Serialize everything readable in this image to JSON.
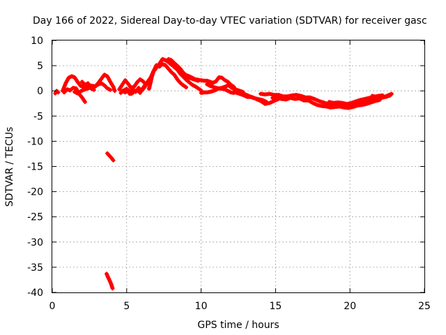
{
  "chart_data": {
    "type": "scatter",
    "title": "Day 166 of 2022, Sidereal Day-to-day VTEC variation (SDTVAR) for receiver gasc",
    "xlabel": "GPS time / hours",
    "ylabel": "SDTVAR / TECUs",
    "xlim": [
      0,
      25
    ],
    "ylim": [
      -40,
      10
    ],
    "xticks": [
      0,
      5,
      10,
      15,
      20,
      25
    ],
    "yticks": [
      10,
      5,
      0,
      -5,
      -10,
      -15,
      -20,
      -25,
      -30,
      -35,
      -40
    ],
    "grid": true,
    "marker": "plus",
    "series": [
      {
        "name": "SDTVAR",
        "color": "#ff0000",
        "tracks": [
          [
            [
              0.2,
              -0.5
            ],
            [
              0.3,
              0.0
            ],
            [
              0.4,
              -0.3
            ]
          ],
          [
            [
              0.7,
              0.0
            ],
            [
              0.9,
              1.5
            ],
            [
              1.1,
              2.6
            ],
            [
              1.3,
              2.9
            ],
            [
              1.5,
              2.7
            ],
            [
              1.7,
              1.8
            ],
            [
              1.9,
              1.0
            ],
            [
              2.1,
              0.8
            ],
            [
              2.3,
              0.6
            ],
            [
              2.5,
              1.1
            ],
            [
              2.7,
              1.0
            ],
            [
              2.9,
              0.9
            ],
            [
              3.1,
              1.6
            ],
            [
              3.3,
              2.4
            ],
            [
              3.5,
              3.2
            ],
            [
              3.7,
              2.9
            ],
            [
              3.9,
              1.8
            ],
            [
              4.1,
              0.8
            ],
            [
              4.2,
              0.0
            ]
          ],
          [
            [
              0.8,
              -0.3
            ],
            [
              1.0,
              0.3
            ],
            [
              1.2,
              0.1
            ],
            [
              1.4,
              0.6
            ],
            [
              1.6,
              0.5
            ],
            [
              1.8,
              -0.6
            ],
            [
              2.0,
              -1.3
            ],
            [
              2.2,
              -2.2
            ]
          ],
          [
            [
              1.5,
              -0.2
            ],
            [
              1.7,
              -0.5
            ],
            [
              1.9,
              -0.1
            ],
            [
              2.1,
              0.2
            ],
            [
              2.3,
              0.4
            ],
            [
              2.5,
              0.6
            ],
            [
              2.7,
              0.5
            ],
            [
              2.9,
              0.9
            ],
            [
              3.1,
              1.3
            ],
            [
              3.3,
              1.5
            ],
            [
              3.5,
              1.1
            ],
            [
              3.7,
              0.5
            ],
            [
              3.9,
              0.2
            ]
          ],
          [
            [
              2.0,
              1.8
            ],
            [
              2.2,
              1.2
            ],
            [
              2.4,
              1.5
            ],
            [
              2.6,
              0.5
            ],
            [
              2.8,
              0.2
            ]
          ],
          [
            [
              3.7,
              -12.4
            ],
            [
              3.85,
              -12.9
            ],
            [
              4.0,
              -13.4
            ],
            [
              4.1,
              -13.8
            ]
          ],
          [
            [
              3.65,
              -36.3
            ],
            [
              3.75,
              -37.0
            ],
            [
              3.85,
              -37.6
            ],
            [
              3.95,
              -38.3
            ],
            [
              4.05,
              -39.2
            ]
          ],
          [
            [
              4.5,
              0.3
            ],
            [
              4.7,
              1.2
            ],
            [
              4.9,
              2.1
            ],
            [
              5.1,
              1.4
            ],
            [
              5.3,
              0.6
            ],
            [
              5.5,
              0.8
            ],
            [
              5.7,
              1.7
            ],
            [
              5.9,
              2.3
            ],
            [
              6.1,
              1.9
            ],
            [
              6.3,
              1.2
            ]
          ],
          [
            [
              4.6,
              -0.4
            ],
            [
              4.8,
              0.1
            ],
            [
              5.0,
              0.4
            ],
            [
              5.2,
              -0.6
            ],
            [
              5.4,
              0.3
            ],
            [
              5.6,
              -0.2
            ],
            [
              5.8,
              0.6
            ],
            [
              6.0,
              0.0
            ],
            [
              6.2,
              0.7
            ],
            [
              6.4,
              1.8
            ],
            [
              6.6,
              2.6
            ],
            [
              6.8,
              3.9
            ],
            [
              7.0,
              5.1
            ]
          ],
          [
            [
              4.7,
              0.0
            ],
            [
              4.9,
              -0.3
            ],
            [
              5.1,
              0.2
            ],
            [
              5.3,
              -0.6
            ],
            [
              5.5,
              -0.2
            ],
            [
              5.7,
              0.2
            ],
            [
              5.9,
              -0.4
            ],
            [
              6.1,
              0.6
            ],
            [
              6.3,
              1.4
            ]
          ],
          [
            [
              6.5,
              0.4
            ],
            [
              6.6,
              1.6
            ],
            [
              6.7,
              2.9
            ],
            [
              6.8,
              3.8
            ],
            [
              6.9,
              4.2
            ],
            [
              7.0,
              4.6
            ]
          ],
          [
            [
              7.2,
              5.4
            ],
            [
              7.4,
              6.3
            ],
            [
              7.6,
              6.1
            ],
            [
              7.8,
              5.7
            ],
            [
              8.0,
              5.2
            ],
            [
              8.2,
              4.9
            ],
            [
              8.4,
              4.5
            ],
            [
              8.6,
              3.9
            ],
            [
              8.8,
              3.6
            ],
            [
              9.0,
              3.1
            ],
            [
              9.2,
              2.9
            ],
            [
              9.4,
              2.6
            ],
            [
              9.6,
              2.3
            ],
            [
              9.8,
              2.2
            ],
            [
              10.0,
              2.1
            ],
            [
              10.2,
              2.0
            ],
            [
              10.4,
              2.0
            ],
            [
              10.6,
              1.8
            ],
            [
              10.8,
              1.6
            ],
            [
              11.0,
              1.9
            ],
            [
              11.2,
              2.7
            ],
            [
              11.4,
              2.6
            ],
            [
              11.6,
              2.1
            ],
            [
              11.8,
              1.8
            ],
            [
              12.0,
              1.2
            ],
            [
              12.2,
              0.8
            ]
          ],
          [
            [
              7.2,
              4.8
            ],
            [
              7.4,
              5.3
            ],
            [
              7.6,
              5.1
            ],
            [
              7.8,
              4.4
            ],
            [
              8.0,
              3.7
            ],
            [
              8.2,
              3.2
            ],
            [
              8.4,
              2.3
            ],
            [
              8.6,
              1.6
            ],
            [
              8.8,
              1.1
            ],
            [
              9.0,
              0.7
            ]
          ],
          [
            [
              7.8,
              6.3
            ],
            [
              8.0,
              6.1
            ],
            [
              8.2,
              5.5
            ],
            [
              8.4,
              5.0
            ],
            [
              8.6,
              4.4
            ],
            [
              8.8,
              3.6
            ],
            [
              9.0,
              3.0
            ],
            [
              9.2,
              2.6
            ],
            [
              9.4,
              2.4
            ],
            [
              9.6,
              2.2
            ],
            [
              9.8,
              2.0
            ]
          ],
          [
            [
              8.0,
              5.3
            ],
            [
              8.2,
              4.7
            ],
            [
              8.4,
              4.2
            ],
            [
              8.6,
              3.4
            ],
            [
              8.8,
              2.8
            ],
            [
              9.0,
              2.2
            ],
            [
              9.2,
              1.7
            ],
            [
              9.4,
              1.2
            ],
            [
              9.6,
              0.9
            ],
            [
              9.8,
              0.5
            ],
            [
              10.0,
              0.1
            ]
          ],
          [
            [
              10.0,
              -0.4
            ],
            [
              10.2,
              -0.3
            ],
            [
              10.4,
              -0.3
            ],
            [
              10.6,
              -0.2
            ],
            [
              10.8,
              0.0
            ],
            [
              11.0,
              0.2
            ],
            [
              11.2,
              0.5
            ],
            [
              11.4,
              0.4
            ],
            [
              11.6,
              0.3
            ],
            [
              11.8,
              0.0
            ],
            [
              12.0,
              -0.3
            ],
            [
              12.2,
              -0.4
            ]
          ],
          [
            [
              10.4,
              1.3
            ],
            [
              10.6,
              1.0
            ],
            [
              10.8,
              0.8
            ],
            [
              11.0,
              0.6
            ],
            [
              11.2,
              0.5
            ],
            [
              11.4,
              0.6
            ],
            [
              11.6,
              0.8
            ],
            [
              11.8,
              1.1
            ],
            [
              12.0,
              0.8
            ],
            [
              12.2,
              0.5
            ],
            [
              12.4,
              0.2
            ],
            [
              12.6,
              0.0
            ],
            [
              12.8,
              -0.2
            ]
          ],
          [
            [
              12.0,
              0.7
            ],
            [
              12.3,
              0.3
            ],
            [
              12.6,
              -0.2
            ],
            [
              12.9,
              -0.6
            ],
            [
              13.2,
              -1.0
            ],
            [
              13.5,
              -1.4
            ],
            [
              13.8,
              -1.6
            ],
            [
              14.1,
              -1.8
            ],
            [
              14.4,
              -2.2
            ]
          ],
          [
            [
              12.2,
              -0.2
            ],
            [
              12.5,
              -0.5
            ],
            [
              12.8,
              -0.8
            ],
            [
              13.1,
              -1.2
            ],
            [
              13.4,
              -1.2
            ],
            [
              13.7,
              -1.6
            ],
            [
              14.0,
              -2.0
            ],
            [
              14.3,
              -2.6
            ],
            [
              14.6,
              -2.4
            ],
            [
              14.9,
              -2.0
            ],
            [
              15.2,
              -1.6
            ]
          ],
          [
            [
              14.0,
              -0.6
            ],
            [
              14.3,
              -0.7
            ],
            [
              14.6,
              -0.6
            ],
            [
              14.9,
              -0.8
            ],
            [
              15.2,
              -0.8
            ],
            [
              15.5,
              -1.1
            ],
            [
              15.8,
              -1.1
            ],
            [
              16.1,
              -0.9
            ],
            [
              16.4,
              -0.8
            ],
            [
              16.7,
              -1.0
            ],
            [
              17.0,
              -1.3
            ],
            [
              17.3,
              -1.3
            ],
            [
              17.6,
              -1.6
            ],
            [
              17.9,
              -2.0
            ],
            [
              18.2,
              -2.3
            ],
            [
              18.5,
              -2.6
            ],
            [
              18.8,
              -2.8
            ],
            [
              19.1,
              -2.8
            ],
            [
              19.4,
              -2.8
            ],
            [
              19.7,
              -3.0
            ],
            [
              20.0,
              -2.8
            ],
            [
              20.3,
              -2.5
            ],
            [
              20.6,
              -2.2
            ],
            [
              20.9,
              -2.1
            ],
            [
              21.2,
              -1.9
            ],
            [
              21.5,
              -1.7
            ],
            [
              21.8,
              -1.5
            ],
            [
              22.1,
              -1.3
            ],
            [
              22.4,
              -1.1
            ],
            [
              22.7,
              -0.7
            ]
          ],
          [
            [
              14.8,
              -1.4
            ],
            [
              15.1,
              -1.3
            ],
            [
              15.4,
              -1.6
            ],
            [
              15.7,
              -1.7
            ],
            [
              16.0,
              -1.4
            ],
            [
              16.3,
              -1.6
            ],
            [
              16.6,
              -1.5
            ],
            [
              16.9,
              -1.9
            ],
            [
              17.2,
              -1.9
            ],
            [
              17.5,
              -2.4
            ],
            [
              17.8,
              -2.8
            ],
            [
              18.1,
              -3.0
            ],
            [
              18.4,
              -3.1
            ],
            [
              18.7,
              -3.3
            ],
            [
              19.0,
              -3.2
            ],
            [
              19.3,
              -3.1
            ],
            [
              19.6,
              -3.3
            ],
            [
              19.9,
              -3.4
            ],
            [
              20.2,
              -3.2
            ],
            [
              20.5,
              -2.9
            ],
            [
              20.8,
              -2.8
            ],
            [
              21.1,
              -2.6
            ],
            [
              21.4,
              -2.3
            ],
            [
              21.7,
              -2.0
            ],
            [
              22.0,
              -1.8
            ]
          ],
          [
            [
              18.6,
              -2.2
            ],
            [
              18.9,
              -2.4
            ],
            [
              19.2,
              -2.3
            ],
            [
              19.5,
              -2.4
            ],
            [
              19.8,
              -2.6
            ],
            [
              20.1,
              -2.4
            ],
            [
              20.4,
              -2.1
            ],
            [
              20.7,
              -1.8
            ],
            [
              21.0,
              -1.6
            ],
            [
              21.3,
              -1.4
            ],
            [
              21.6,
              -1.2
            ],
            [
              21.9,
              -1.0
            ],
            [
              22.2,
              -0.9
            ]
          ],
          [
            [
              21.5,
              -1.0
            ],
            [
              21.8,
              -1.2
            ],
            [
              22.1,
              -1.4
            ],
            [
              22.4,
              -1.2
            ],
            [
              22.7,
              -0.9
            ],
            [
              22.8,
              -0.6
            ]
          ]
        ]
      }
    ]
  }
}
